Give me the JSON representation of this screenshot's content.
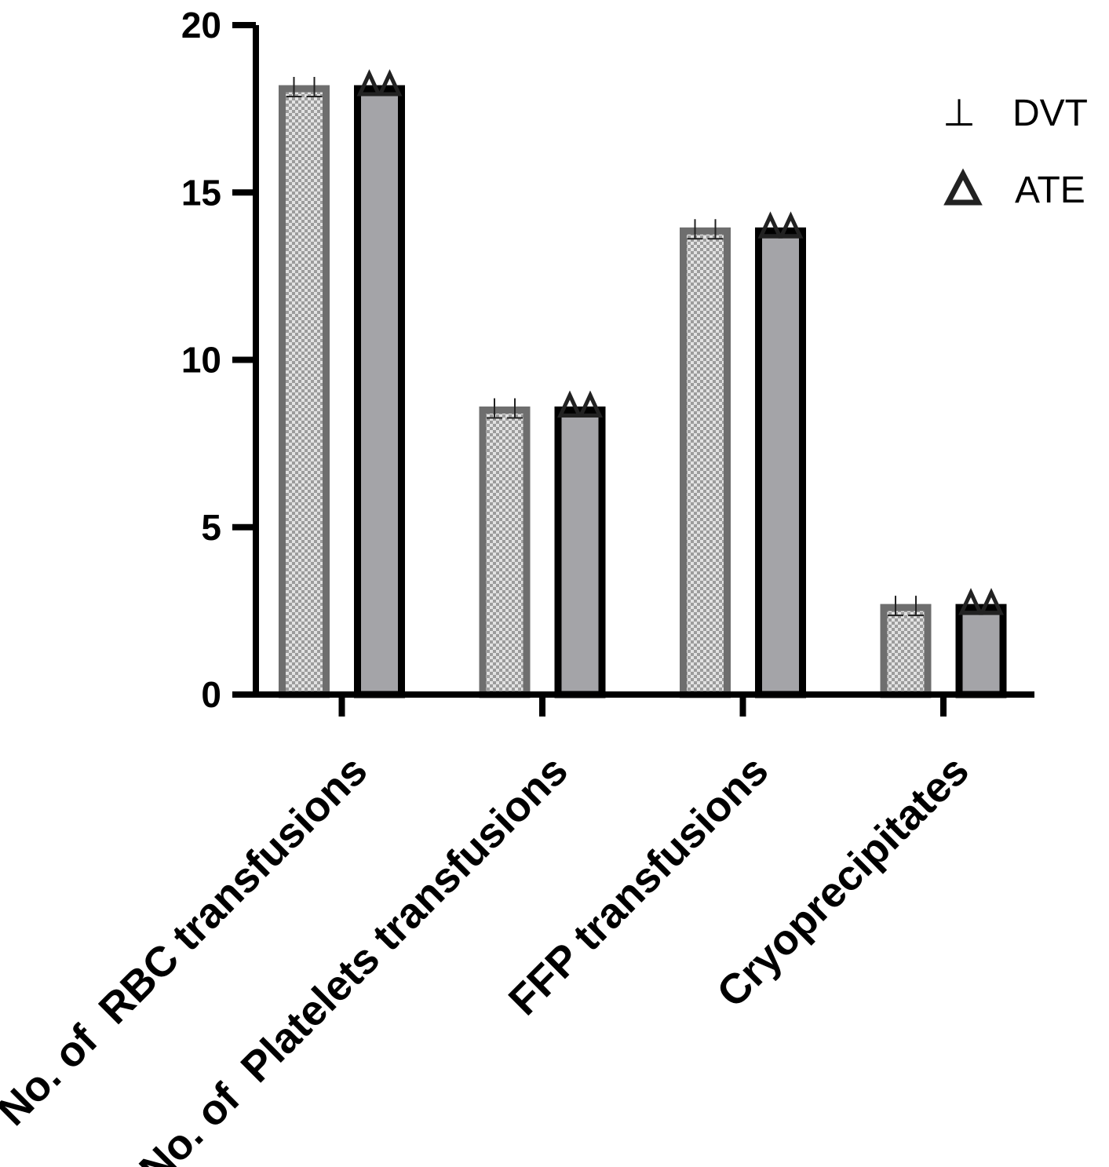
{
  "chart_data": {
    "type": "bar",
    "categories": [
      "No. of  RBC transfusions",
      "No. of  Platelets transfusions",
      "FFP transfusions",
      "Cryoprecipitates"
    ],
    "series": [
      {
        "name": "DVT",
        "marker": "⊥",
        "values": [
          18.1,
          8.5,
          13.85,
          2.6
        ],
        "fill": "#c6c6c6",
        "stroke": "#6e6e6e",
        "pattern": "checkered"
      },
      {
        "name": "ATE",
        "marker": "triangle",
        "values": [
          18.1,
          8.5,
          13.85,
          2.6
        ],
        "fill": "#a4a4a8",
        "stroke": "#000000",
        "pattern": "solid"
      }
    ],
    "title": "",
    "xlabel": "",
    "ylabel": "",
    "ylim": [
      0,
      20
    ],
    "yticks": [
      "0",
      "5",
      "10",
      "15",
      "20"
    ],
    "grid": false,
    "legend_position": "top-right"
  }
}
